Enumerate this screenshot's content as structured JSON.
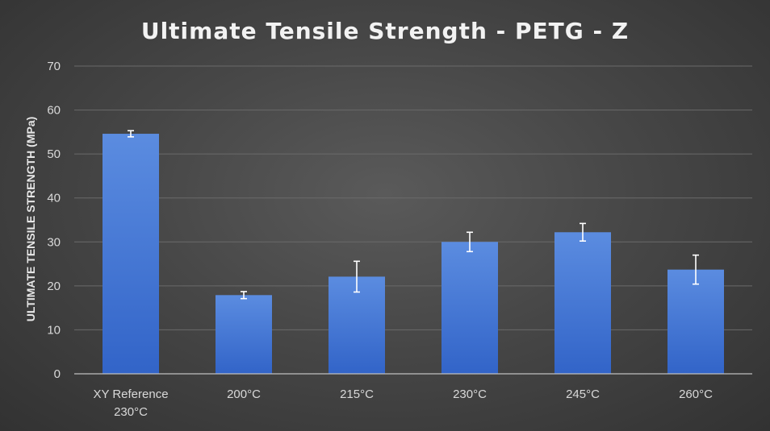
{
  "chart_data": {
    "type": "bar",
    "title": "Ultimate Tensile Strength - PETG - Z",
    "xlabel": "",
    "ylabel": "ULTIMATE TENSILE STRENGTH (MPa)",
    "ylim": [
      0,
      70
    ],
    "yticks": [
      0,
      10,
      20,
      30,
      40,
      50,
      60,
      70
    ],
    "grid": true,
    "categories": [
      [
        "XY Reference",
        "230°C"
      ],
      [
        "200°C"
      ],
      [
        "215°C"
      ],
      [
        "230°C"
      ],
      [
        "245°C"
      ],
      [
        "260°C"
      ]
    ],
    "values": [
      54.6,
      17.9,
      22.1,
      30.0,
      32.2,
      23.7
    ],
    "error": [
      0.7,
      0.8,
      3.5,
      2.2,
      2.0,
      3.3
    ],
    "colors": {
      "bar": "#3a6fd1",
      "bar_light": "#5b8ce0",
      "error_bar": "#ffffff"
    }
  }
}
